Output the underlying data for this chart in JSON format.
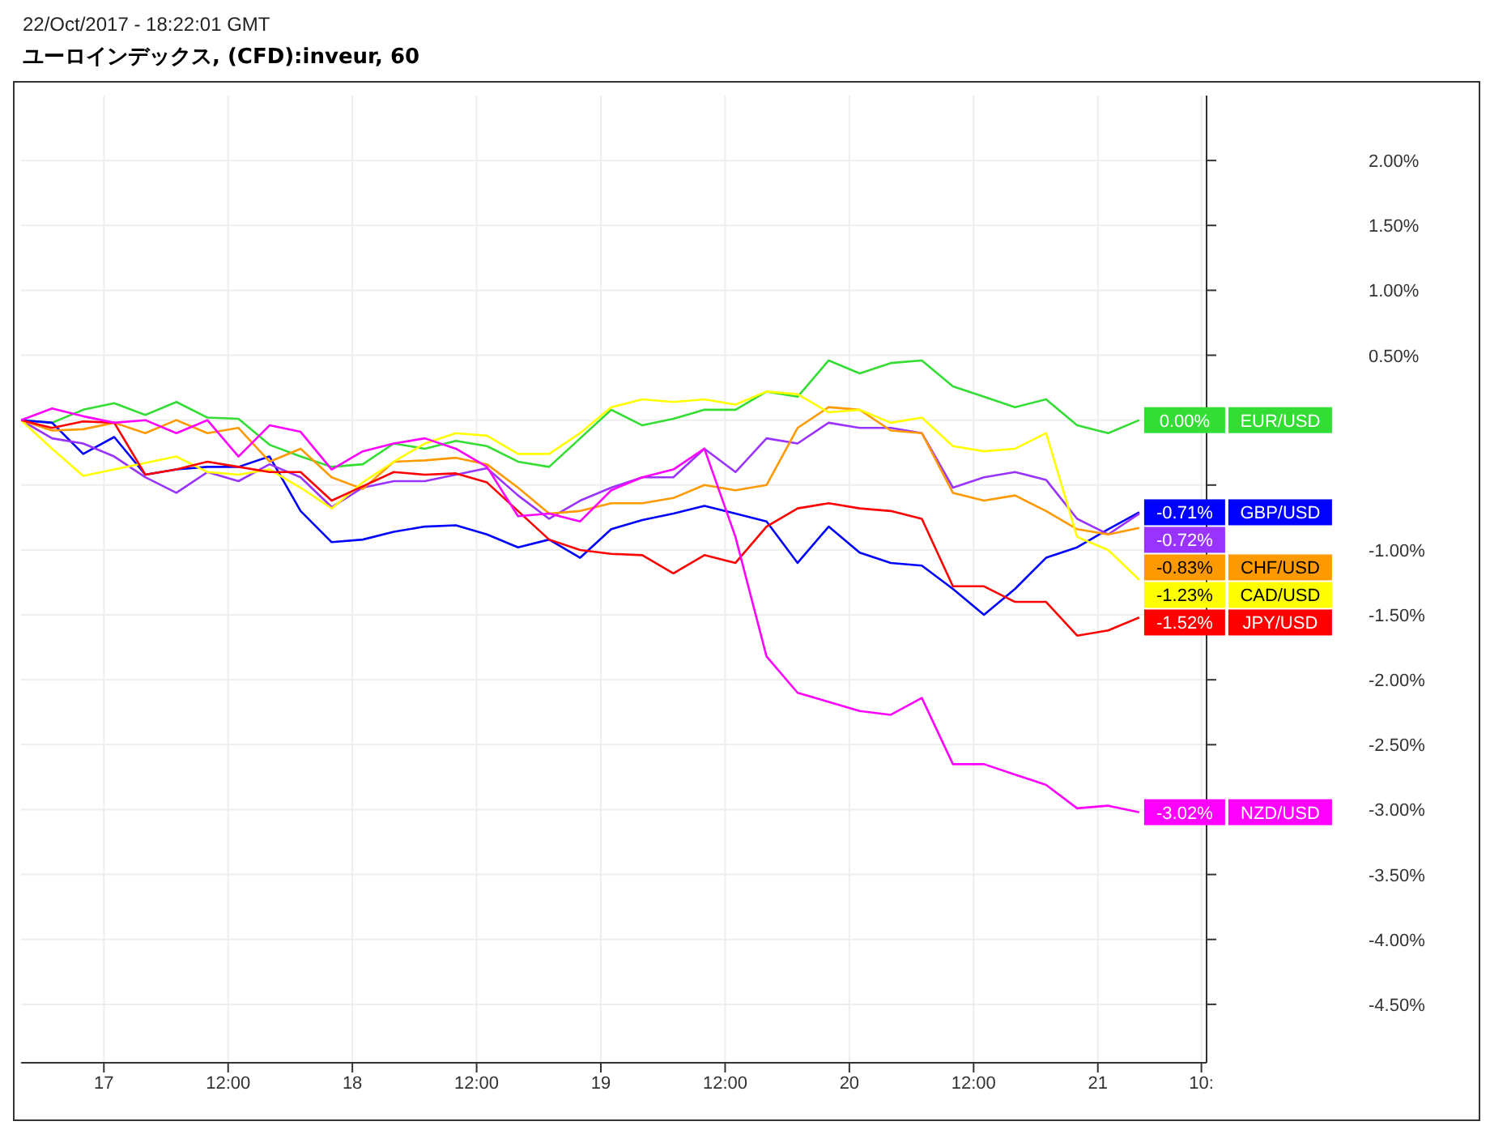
{
  "chart_data": {
    "type": "line",
    "title": "ユーロインデックス, (CFD):inveur, 60",
    "annotations": [
      "22/Oct/2017 - 18:22:01 GMT"
    ],
    "x": [
      "2017-10-16T16:00",
      "2017-10-16T19:00",
      "2017-10-16T22:00",
      "2017-10-17T01:00",
      "2017-10-17T04:00",
      "2017-10-17T07:00",
      "2017-10-17T10:00",
      "2017-10-17T13:00",
      "2017-10-17T16:00",
      "2017-10-17T19:00",
      "2017-10-17T22:00",
      "2017-10-18T01:00",
      "2017-10-18T04:00",
      "2017-10-18T07:00",
      "2017-10-18T10:00",
      "2017-10-18T13:00",
      "2017-10-18T16:00",
      "2017-10-18T19:00",
      "2017-10-18T22:00",
      "2017-10-19T01:00",
      "2017-10-19T04:00",
      "2017-10-19T07:00",
      "2017-10-19T10:00",
      "2017-10-19T13:00",
      "2017-10-19T16:00",
      "2017-10-19T19:00",
      "2017-10-19T22:00",
      "2017-10-20T01:00",
      "2017-10-20T04:00",
      "2017-10-20T07:00",
      "2017-10-20T10:00",
      "2017-10-20T13:00",
      "2017-10-20T16:00",
      "2017-10-20T19:00",
      "2017-10-20T22:00",
      "2017-10-21T01:00",
      "2017-10-21T04:00"
    ],
    "series": [
      {
        "name": "EUR/USD",
        "color": "#33dd33",
        "values": [
          0,
          -0.02,
          0.08,
          0.13,
          0.04,
          0.14,
          0.02,
          0.01,
          -0.19,
          -0.28,
          -0.36,
          -0.34,
          -0.18,
          -0.22,
          -0.16,
          -0.2,
          -0.32,
          -0.36,
          -0.14,
          0.08,
          -0.04,
          0.01,
          0.08,
          0.08,
          0.22,
          0.18,
          0.46,
          0.36,
          0.44,
          0.46,
          0.26,
          0.18,
          0.1,
          0.16,
          -0.04,
          -0.1,
          0.0
        ],
        "value_labels": [
          null,
          null,
          null,
          null,
          null,
          null,
          null,
          null,
          null,
          null,
          null,
          null,
          null,
          null,
          null,
          null,
          null,
          null,
          null,
          null,
          null,
          null,
          null,
          null,
          null,
          null,
          null,
          null,
          null,
          null,
          null,
          null,
          null,
          null,
          null,
          null,
          "0.00%"
        ]
      },
      {
        "name": "GBP/USD",
        "color": "#0000ff",
        "values": [
          0,
          -0.02,
          -0.26,
          -0.13,
          -0.42,
          -0.38,
          -0.36,
          -0.36,
          -0.28,
          -0.7,
          -0.94,
          -0.92,
          -0.86,
          -0.82,
          -0.81,
          -0.88,
          -0.98,
          -0.92,
          -1.06,
          -0.84,
          -0.77,
          -0.72,
          -0.66,
          -0.72,
          -0.78,
          -1.1,
          -0.82,
          -1.02,
          -1.1,
          -1.12,
          -1.3,
          -1.5,
          -1.3,
          -1.06,
          -0.98,
          -0.84,
          -0.71
        ],
        "value_labels": [
          null,
          null,
          null,
          null,
          null,
          null,
          null,
          null,
          null,
          null,
          null,
          null,
          null,
          null,
          null,
          null,
          null,
          null,
          null,
          null,
          null,
          null,
          null,
          null,
          null,
          null,
          null,
          null,
          null,
          null,
          null,
          null,
          null,
          null,
          null,
          null,
          "-0.71%"
        ]
      },
      {
        "color": "#9933ff",
        "values": [
          0,
          -0.14,
          -0.18,
          -0.28,
          -0.44,
          -0.56,
          -0.4,
          -0.47,
          -0.34,
          -0.44,
          -0.67,
          -0.52,
          -0.47,
          -0.47,
          -0.42,
          -0.37,
          -0.58,
          -0.76,
          -0.62,
          -0.52,
          -0.44,
          -0.44,
          -0.22,
          -0.4,
          -0.14,
          -0.18,
          -0.02,
          -0.06,
          -0.06,
          -0.1,
          -0.52,
          -0.44,
          -0.4,
          -0.46,
          -0.76,
          -0.88,
          -0.72
        ],
        "value_labels": [
          null,
          null,
          null,
          null,
          null,
          null,
          null,
          null,
          null,
          null,
          null,
          null,
          null,
          null,
          null,
          null,
          null,
          null,
          null,
          null,
          null,
          null,
          null,
          null,
          null,
          null,
          null,
          null,
          null,
          null,
          null,
          null,
          null,
          null,
          null,
          null,
          "-0.72%"
        ]
      },
      {
        "name": "CHF/USD",
        "color": "#ff9900",
        "values": [
          0,
          -0.08,
          -0.07,
          -0.02,
          -0.1,
          0,
          -0.1,
          -0.06,
          -0.32,
          -0.22,
          -0.44,
          -0.53,
          -0.32,
          -0.31,
          -0.29,
          -0.34,
          -0.52,
          -0.72,
          -0.7,
          -0.64,
          -0.64,
          -0.6,
          -0.5,
          -0.54,
          -0.5,
          -0.06,
          0.1,
          0.08,
          -0.08,
          -0.1,
          -0.56,
          -0.62,
          -0.58,
          -0.7,
          -0.84,
          -0.88,
          -0.83
        ],
        "value_labels": [
          null,
          null,
          null,
          null,
          null,
          null,
          null,
          null,
          null,
          null,
          null,
          null,
          null,
          null,
          null,
          null,
          null,
          null,
          null,
          null,
          null,
          null,
          null,
          null,
          null,
          null,
          null,
          null,
          null,
          null,
          null,
          null,
          null,
          null,
          null,
          null,
          "-0.83%"
        ]
      },
      {
        "name": "CAD/USD",
        "color": "#ffff00",
        "values": [
          0,
          -0.22,
          -0.43,
          -0.38,
          -0.33,
          -0.28,
          -0.4,
          -0.42,
          -0.38,
          -0.52,
          -0.68,
          -0.48,
          -0.32,
          -0.18,
          -0.1,
          -0.12,
          -0.26,
          -0.26,
          -0.1,
          0.1,
          0.16,
          0.14,
          0.16,
          0.12,
          0.22,
          0.2,
          0.06,
          0.08,
          -0.02,
          0.02,
          -0.2,
          -0.24,
          -0.22,
          -0.1,
          -0.9,
          -1.0,
          -1.23
        ],
        "value_labels": [
          null,
          null,
          null,
          null,
          null,
          null,
          null,
          null,
          null,
          null,
          null,
          null,
          null,
          null,
          null,
          null,
          null,
          null,
          null,
          null,
          null,
          null,
          null,
          null,
          null,
          null,
          null,
          null,
          null,
          null,
          null,
          null,
          null,
          null,
          null,
          null,
          "-1.23%"
        ]
      },
      {
        "name": "JPY/USD",
        "color": "#ff0000",
        "values": [
          0,
          -0.06,
          -0.01,
          -0.02,
          -0.42,
          -0.38,
          -0.32,
          -0.36,
          -0.4,
          -0.4,
          -0.62,
          -0.51,
          -0.4,
          -0.42,
          -0.41,
          -0.48,
          -0.7,
          -0.92,
          -1.0,
          -1.03,
          -1.04,
          -1.18,
          -1.04,
          -1.1,
          -0.82,
          -0.68,
          -0.64,
          -0.68,
          -0.7,
          -0.76,
          -1.28,
          -1.28,
          -1.4,
          -1.4,
          -1.66,
          -1.62,
          -1.52
        ],
        "value_labels": [
          null,
          null,
          null,
          null,
          null,
          null,
          null,
          null,
          null,
          null,
          null,
          null,
          null,
          null,
          null,
          null,
          null,
          null,
          null,
          null,
          null,
          null,
          null,
          null,
          null,
          null,
          null,
          null,
          null,
          null,
          null,
          null,
          null,
          null,
          null,
          null,
          "-1.52%"
        ]
      },
      {
        "name": "NZD/USD",
        "color": "#ff00ff",
        "values": [
          0,
          0.09,
          0.03,
          -0.02,
          0,
          -0.1,
          0,
          -0.28,
          -0.04,
          -0.09,
          -0.38,
          -0.24,
          -0.18,
          -0.14,
          -0.22,
          -0.36,
          -0.74,
          -0.72,
          -0.78,
          -0.54,
          -0.44,
          -0.38,
          -0.22,
          -0.9,
          -1.82,
          -2.1,
          -2.17,
          -2.24,
          -2.27,
          -2.14,
          -2.65,
          -2.65,
          -2.73,
          -2.81,
          -2.99,
          -2.97,
          -3.02
        ],
        "value_labels": [
          null,
          null,
          null,
          null,
          null,
          null,
          null,
          null,
          null,
          null,
          null,
          null,
          null,
          null,
          null,
          null,
          null,
          null,
          null,
          null,
          null,
          null,
          null,
          null,
          null,
          null,
          null,
          null,
          null,
          null,
          null,
          null,
          null,
          null,
          null,
          null,
          "-3.02%"
        ]
      }
    ],
    "xlim": [
      "2017-10-16T16:00",
      "2017-10-21T10:30"
    ],
    "xticks": [
      {
        "value": "2017-10-17",
        "label": "17"
      },
      {
        "value": "2017-10-17T12:00",
        "label": "12:00"
      },
      {
        "value": "2017-10-18",
        "label": "18"
      },
      {
        "value": "2017-10-18T12:00",
        "label": "12:00"
      },
      {
        "value": "2017-10-19",
        "label": "19"
      },
      {
        "value": "2017-10-19T12:00",
        "label": "12:00"
      },
      {
        "value": "2017-10-20",
        "label": "20"
      },
      {
        "value": "2017-10-20T12:00",
        "label": "12:00"
      },
      {
        "value": "2017-10-21",
        "label": "21"
      },
      {
        "value": "2017-10-21T10:00",
        "label": "10:"
      }
    ],
    "ylim": [
      -4.95,
      2.5
    ],
    "yticks": [
      {
        "value": -4.5,
        "label": "-4.50%"
      },
      {
        "value": -4,
        "label": "-4.00%"
      },
      {
        "value": -3.5,
        "label": "-3.50%"
      },
      {
        "value": -3,
        "label": "-3.00%"
      },
      {
        "value": -2.5,
        "label": "-2.50%"
      },
      {
        "value": -2,
        "label": "-2.00%"
      },
      {
        "value": -1.5,
        "label": "-1.50%"
      },
      {
        "value": -1,
        "label": "-1.00%"
      },
      {
        "value": -0.5,
        "label": null
      },
      {
        "value": 0,
        "label": null
      },
      {
        "value": 0.5,
        "label": "0.50%"
      },
      {
        "value": 1,
        "label": "1.00%"
      },
      {
        "value": 1.5,
        "label": "1.50%"
      },
      {
        "value": 2,
        "label": "2.00%"
      }
    ],
    "grid": true,
    "legend": "right",
    "marker": "none",
    "line_style": "solid"
  }
}
